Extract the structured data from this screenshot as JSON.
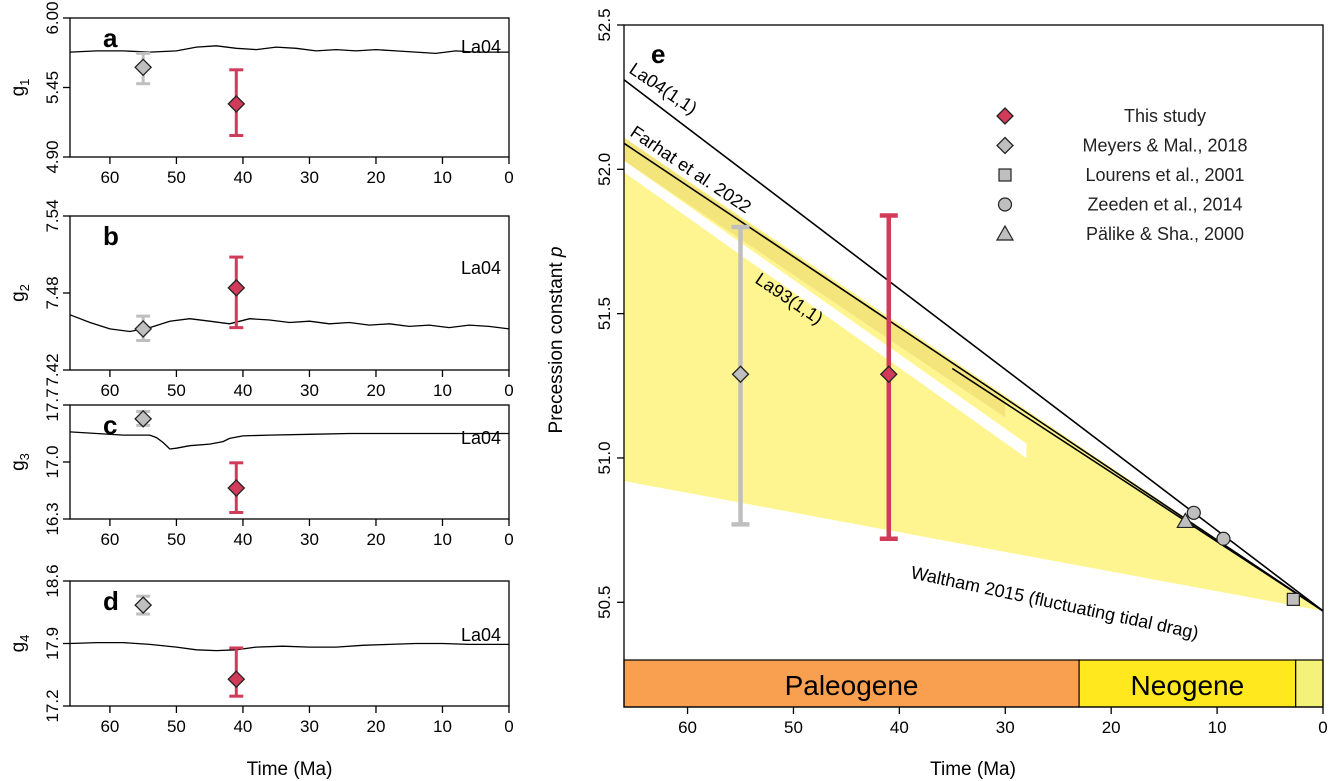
{
  "chart_data": [
    {
      "type": "line",
      "panel": "a",
      "ylabel_base": "g",
      "ylabel_sub": "1",
      "xlabel": "",
      "xlim": [
        66,
        0
      ],
      "ylim": [
        4.9,
        6.0
      ],
      "yticks": [
        "6.00",
        "5.45",
        "4.90"
      ],
      "xticks": [
        "60",
        "50",
        "40",
        "30",
        "20",
        "10",
        "0"
      ],
      "curve_label": "La04",
      "curve": [
        [
          66,
          5.73
        ],
        [
          62,
          5.74
        ],
        [
          58,
          5.74
        ],
        [
          54,
          5.73
        ],
        [
          50,
          5.74
        ],
        [
          47,
          5.77
        ],
        [
          44,
          5.78
        ],
        [
          41,
          5.76
        ],
        [
          38,
          5.75
        ],
        [
          35,
          5.77
        ],
        [
          32,
          5.76
        ],
        [
          29,
          5.74
        ],
        [
          26,
          5.75
        ],
        [
          23,
          5.74
        ],
        [
          20,
          5.75
        ],
        [
          17,
          5.74
        ],
        [
          14,
          5.73
        ],
        [
          11,
          5.72
        ],
        [
          8,
          5.74
        ],
        [
          5,
          5.73
        ],
        [
          2,
          5.73
        ],
        [
          0,
          5.73
        ]
      ],
      "points": [
        {
          "source": "Meyers & Mal., 2018",
          "x": 55,
          "y": 5.61,
          "err_low": 5.48,
          "err_high": 5.72
        },
        {
          "source": "This study",
          "x": 41,
          "y": 5.32,
          "err_low": 5.07,
          "err_high": 5.59
        }
      ]
    },
    {
      "type": "line",
      "panel": "b",
      "ylabel_base": "g",
      "ylabel_sub": "2",
      "xlabel": "",
      "xlim": [
        66,
        0
      ],
      "ylim": [
        7.42,
        7.54
      ],
      "yticks": [
        "7.54",
        "7.48",
        "7.42"
      ],
      "xticks": [
        "60",
        "50",
        "40",
        "30",
        "20",
        "10",
        "0"
      ],
      "curve_label": "La04",
      "curve": [
        [
          66,
          7.463
        ],
        [
          63,
          7.457
        ],
        [
          60,
          7.452
        ],
        [
          57,
          7.45
        ],
        [
          54,
          7.453
        ],
        [
          51,
          7.458
        ],
        [
          48,
          7.46
        ],
        [
          45,
          7.458
        ],
        [
          42,
          7.456
        ],
        [
          39,
          7.46
        ],
        [
          36,
          7.459
        ],
        [
          33,
          7.457
        ],
        [
          30,
          7.458
        ],
        [
          27,
          7.456
        ],
        [
          24,
          7.457
        ],
        [
          21,
          7.455
        ],
        [
          18,
          7.456
        ],
        [
          15,
          7.454
        ],
        [
          12,
          7.455
        ],
        [
          9,
          7.453
        ],
        [
          6,
          7.455
        ],
        [
          3,
          7.454
        ],
        [
          0,
          7.452
        ]
      ],
      "points": [
        {
          "source": "Meyers & Mal., 2018",
          "x": 55,
          "y": 7.452,
          "err_low": 7.443,
          "err_high": 7.462
        },
        {
          "source": "This study",
          "x": 41,
          "y": 7.484,
          "err_low": 7.453,
          "err_high": 7.508
        }
      ]
    },
    {
      "type": "line",
      "panel": "c",
      "ylabel_base": "g",
      "ylabel_sub": "3",
      "xlabel": "",
      "xlim": [
        66,
        0
      ],
      "ylim": [
        16.3,
        17.7
      ],
      "yticks": [
        "17.7",
        "17.0",
        "16.3"
      ],
      "xticks": [
        "60",
        "50",
        "40",
        "30",
        "20",
        "10",
        "0"
      ],
      "curve_label": "La04",
      "curve": [
        [
          66,
          17.37
        ],
        [
          62,
          17.35
        ],
        [
          58,
          17.33
        ],
        [
          54,
          17.33
        ],
        [
          53,
          17.3
        ],
        [
          52,
          17.24
        ],
        [
          51,
          17.16
        ],
        [
          50,
          17.17
        ],
        [
          48,
          17.2
        ],
        [
          45,
          17.22
        ],
        [
          43,
          17.25
        ],
        [
          42,
          17.29
        ],
        [
          40,
          17.32
        ],
        [
          36,
          17.33
        ],
        [
          30,
          17.34
        ],
        [
          24,
          17.35
        ],
        [
          18,
          17.35
        ],
        [
          12,
          17.35
        ],
        [
          6,
          17.35
        ],
        [
          0,
          17.35
        ]
      ],
      "points": [
        {
          "source": "Meyers & Mal., 2018",
          "x": 55,
          "y": 17.53,
          "err_low": 17.45,
          "err_high": 17.62
        },
        {
          "source": "This study",
          "x": 41,
          "y": 16.68,
          "err_low": 16.38,
          "err_high": 16.99
        }
      ]
    },
    {
      "type": "line",
      "panel": "d",
      "ylabel_base": "g",
      "ylabel_sub": "4",
      "xlabel": "Time (Ma)",
      "xlim": [
        66,
        0
      ],
      "ylim": [
        17.2,
        18.6
      ],
      "yticks": [
        "18.6",
        "17.9",
        "17.2"
      ],
      "xticks": [
        "60",
        "50",
        "40",
        "30",
        "20",
        "10",
        "0"
      ],
      "curve_label": "La04",
      "curve": [
        [
          66,
          17.9
        ],
        [
          62,
          17.91
        ],
        [
          58,
          17.91
        ],
        [
          54,
          17.89
        ],
        [
          50,
          17.86
        ],
        [
          47,
          17.83
        ],
        [
          44,
          17.82
        ],
        [
          41,
          17.83
        ],
        [
          38,
          17.86
        ],
        [
          34,
          17.87
        ],
        [
          30,
          17.86
        ],
        [
          26,
          17.86
        ],
        [
          22,
          17.88
        ],
        [
          18,
          17.89
        ],
        [
          14,
          17.9
        ],
        [
          10,
          17.9
        ],
        [
          6,
          17.89
        ],
        [
          2,
          17.89
        ],
        [
          0,
          17.89
        ]
      ],
      "points": [
        {
          "source": "Meyers & Mal., 2018",
          "x": 55,
          "y": 18.33,
          "err_low": 18.23,
          "err_high": 18.43
        },
        {
          "source": "This study",
          "x": 41,
          "y": 17.5,
          "err_low": 17.31,
          "err_high": 17.85
        }
      ]
    },
    {
      "type": "line",
      "panel": "e",
      "xlabel": "Time (Ma)",
      "ylabel_main": "Precession constant ",
      "ylabel_italic": "p",
      "xlim": [
        66,
        0
      ],
      "ylim": [
        50.3,
        52.5
      ],
      "yticks": [
        "52.5",
        "52.0",
        "51.5",
        "51.0",
        "50.5"
      ],
      "xticks": [
        "60",
        "50",
        "40",
        "30",
        "20",
        "10",
        "0"
      ],
      "series": [
        {
          "name": "La04(1,1)",
          "x": [
            66,
            0
          ],
          "y": [
            52.31,
            50.47
          ]
        },
        {
          "name": "Farhat et al. 2022",
          "x": [
            66,
            0
          ],
          "y": [
            52.09,
            50.47
          ]
        },
        {
          "name": "La93(1,1)",
          "x": [
            35,
            0
          ],
          "y": [
            51.31,
            50.47
          ]
        }
      ],
      "shaded_region": {
        "name": "Waltham 2015 (fluctuating tidal drag)",
        "color": "#fff590",
        "band_color": "#f4e47c",
        "upper_x": [
          66,
          0
        ],
        "upper_y": [
          52.11,
          50.47
        ],
        "lower_x": [
          66,
          0
        ],
        "lower_y": [
          50.92,
          50.47
        ],
        "gap_x": [
          66,
          0
        ],
        "gap_y": [
          51.99,
          50.47
        ]
      },
      "points": [
        {
          "source": "This study",
          "x": 41,
          "y": 51.29,
          "err_low": 50.72,
          "err_high": 51.84
        },
        {
          "source": "Meyers & Mal., 2018",
          "x": 55,
          "y": 51.29,
          "err_low": 50.77,
          "err_high": 51.8
        },
        {
          "source": "Lourens et al., 2001",
          "x": 2.8,
          "y": 50.51
        },
        {
          "source": "Zeeden et al., 2014",
          "x": 12.2,
          "y": 50.81
        },
        {
          "source": "Zeeden et al., 2014",
          "x": 9.4,
          "y": 50.72
        },
        {
          "source": "Pälike & Sha., 2000",
          "x": 13,
          "y": 50.78
        }
      ],
      "legend": [
        {
          "label": "This study",
          "marker": "diamond",
          "color": "#d23a5a"
        },
        {
          "label": "Meyers & Mal., 2018",
          "marker": "diamond",
          "color": "#bfbfbf"
        },
        {
          "label": "Lourens et al., 2001",
          "marker": "square",
          "color": "#bfbfbf"
        },
        {
          "label": "Zeeden et al., 2014",
          "marker": "circle",
          "color": "#bfbfbf"
        },
        {
          "label": "Pälike & Sha., 2000",
          "marker": "triangle",
          "color": "#bfbfbf"
        }
      ],
      "legend_position": "top-right",
      "periods": [
        {
          "label": "Paleogene",
          "start": 66,
          "end": 23.03,
          "color": "#f8a050"
        },
        {
          "label": "Neogene",
          "start": 23.03,
          "end": 2.58,
          "color": "#ffe81d"
        },
        {
          "label": "",
          "start": 2.58,
          "end": 0,
          "color": "#f5f27a"
        }
      ]
    }
  ],
  "colors": {
    "this_study": "#d23a5a",
    "literature": "#bfbfbf",
    "waltham_text": "#8c8750",
    "curve": "#000000"
  }
}
